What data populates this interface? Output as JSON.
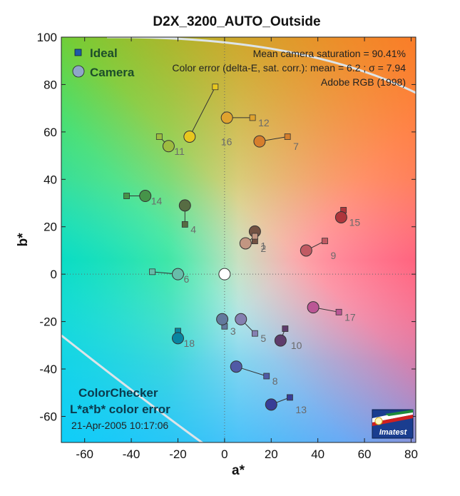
{
  "chart_data": {
    "type": "scatter",
    "title": "D2X_3200_AUTO_Outside",
    "xlabel": "a*",
    "ylabel": "b*",
    "xlim": [
      -70,
      82
    ],
    "ylim": [
      -71,
      100
    ],
    "xticks": [
      -60,
      -40,
      -20,
      0,
      20,
      40,
      60,
      80
    ],
    "yticks": [
      -60,
      -40,
      -20,
      0,
      20,
      40,
      60,
      80,
      100
    ],
    "grid": false,
    "legend": {
      "placement": "top-left",
      "entries": [
        {
          "name": "Ideal",
          "marker": "square",
          "color": "#1e5aa8"
        },
        {
          "name": "Camera",
          "marker": "circle",
          "color": "#8fa6c8"
        }
      ]
    },
    "annotations": {
      "saturation": "Mean camera saturation = 90.41%",
      "color_error": "Color error (delta-E, sat. corr.):  mean = 6.2 ;  σ = 7.94",
      "gamut": "Adobe RGB (1998)"
    },
    "chart_name": "ColorChecker",
    "chart_subtitle": "L*a*b* color error",
    "date": "21-Apr-2005 10:17:06",
    "logo_text": "Imatest",
    "patches": [
      {
        "label": "1",
        "ideal": [
          13,
          14
        ],
        "camera": [
          13,
          18
        ],
        "color": "#735243"
      },
      {
        "label": "2",
        "ideal": [
          13,
          16
        ],
        "camera": [
          9,
          13
        ],
        "color": "#c29682"
      },
      {
        "label": "3",
        "ideal": [
          0,
          -22
        ],
        "camera": [
          -1,
          -19
        ],
        "color": "#627a9d"
      },
      {
        "label": "4",
        "ideal": [
          -17,
          21
        ],
        "camera": [
          -17,
          29
        ],
        "color": "#576c43"
      },
      {
        "label": "5",
        "ideal": [
          13,
          -25
        ],
        "camera": [
          7,
          -19
        ],
        "color": "#8580b1"
      },
      {
        "label": "6",
        "ideal": [
          -31,
          1
        ],
        "camera": [
          -20,
          0
        ],
        "color": "#67bdaa"
      },
      {
        "label": "7",
        "ideal": [
          27,
          58
        ],
        "camera": [
          15,
          56
        ],
        "color": "#d67e2c"
      },
      {
        "label": "8",
        "ideal": [
          18,
          -43
        ],
        "camera": [
          5,
          -39
        ],
        "color": "#505ba6"
      },
      {
        "label": "9",
        "ideal": [
          43,
          14
        ],
        "camera": [
          35,
          10
        ],
        "color": "#c15a63"
      },
      {
        "label": "10",
        "ideal": [
          26,
          -23
        ],
        "camera": [
          24,
          -28
        ],
        "color": "#5e3c6c"
      },
      {
        "label": "11",
        "ideal": [
          -28,
          58
        ],
        "camera": [
          -24,
          54
        ],
        "color": "#9dbc40"
      },
      {
        "label": "12",
        "ideal": [
          12,
          66
        ],
        "camera": [
          1,
          66
        ],
        "color": "#e0a32e"
      },
      {
        "label": "13",
        "ideal": [
          28,
          -52
        ],
        "camera": [
          20,
          -55
        ],
        "color": "#383d96"
      },
      {
        "label": "14",
        "ideal": [
          -42,
          33
        ],
        "camera": [
          -34,
          33
        ],
        "color": "#469449"
      },
      {
        "label": "15",
        "ideal": [
          51,
          27
        ],
        "camera": [
          50,
          24
        ],
        "color": "#af363c"
      },
      {
        "label": "16",
        "ideal": [
          -4,
          79
        ],
        "camera": [
          -15,
          58
        ],
        "color": "#e7c71f"
      },
      {
        "label": "17",
        "ideal": [
          49,
          -16
        ],
        "camera": [
          38,
          -14
        ],
        "color": "#bb5695"
      },
      {
        "label": "18",
        "ideal": [
          -20,
          -24
        ],
        "camera": [
          -20,
          -27
        ],
        "color": "#0885a1"
      },
      {
        "label": "",
        "ideal": [
          0,
          0
        ],
        "camera": [
          0,
          0
        ],
        "color": "#ffffff"
      }
    ]
  }
}
